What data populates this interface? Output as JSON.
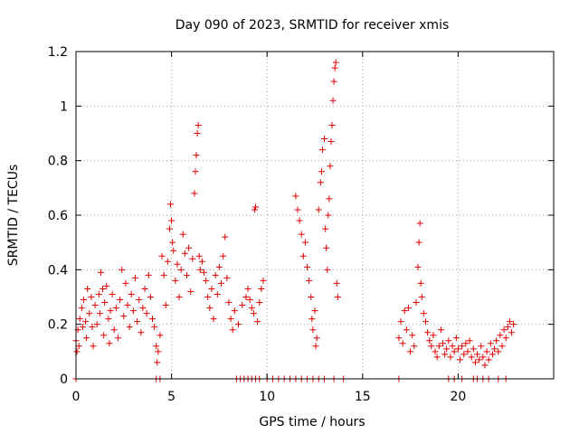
{
  "chart_data": {
    "type": "scatter",
    "title": "Day 090 of 2023, SRMTID for receiver xmis",
    "xlabel": "GPS time / hours",
    "ylabel": "SRMTID / TECUs",
    "xlim": [
      0,
      25
    ],
    "ylim": [
      0,
      1.2
    ],
    "grid": true,
    "marker": "+",
    "marker_color": "#e00000",
    "x_ticks": [
      {
        "value": 0,
        "label": "0"
      },
      {
        "value": 5,
        "label": "5"
      },
      {
        "value": 10,
        "label": "10"
      },
      {
        "value": 15,
        "label": "15"
      },
      {
        "value": 20,
        "label": "20"
      }
    ],
    "y_ticks": [
      {
        "value": 0,
        "label": "0"
      },
      {
        "value": 0.2,
        "label": "0.2"
      },
      {
        "value": 0.4,
        "label": "0.4"
      },
      {
        "value": 0.6,
        "label": "0.6"
      },
      {
        "value": 0.8,
        "label": "0.8"
      },
      {
        "value": 1.0,
        "label": "1"
      },
      {
        "value": 1.2,
        "label": "1.2"
      }
    ],
    "series": [
      {
        "name": "SRMTID",
        "points": [
          [
            0.0,
            0.14
          ],
          [
            0.05,
            0.1
          ],
          [
            0.1,
            0.18
          ],
          [
            0.15,
            0.12
          ],
          [
            0.2,
            0.22
          ],
          [
            0.3,
            0.26
          ],
          [
            0.35,
            0.19
          ],
          [
            0.4,
            0.29
          ],
          [
            0.5,
            0.21
          ],
          [
            0.55,
            0.15
          ],
          [
            0.6,
            0.33
          ],
          [
            0.7,
            0.24
          ],
          [
            0.8,
            0.3
          ],
          [
            0.85,
            0.19
          ],
          [
            0.9,
            0.12
          ],
          [
            1.0,
            0.27
          ],
          [
            1.1,
            0.2
          ],
          [
            1.2,
            0.31
          ],
          [
            1.25,
            0.24
          ],
          [
            1.3,
            0.39
          ],
          [
            1.4,
            0.33
          ],
          [
            1.45,
            0.16
          ],
          [
            1.5,
            0.28
          ],
          [
            1.6,
            0.34
          ],
          [
            1.7,
            0.22
          ],
          [
            1.75,
            0.13
          ],
          [
            1.8,
            0.25
          ],
          [
            1.9,
            0.31
          ],
          [
            2.0,
            0.18
          ],
          [
            2.1,
            0.26
          ],
          [
            2.2,
            0.15
          ],
          [
            2.3,
            0.29
          ],
          [
            2.4,
            0.4
          ],
          [
            2.5,
            0.23
          ],
          [
            2.6,
            0.35
          ],
          [
            2.7,
            0.27
          ],
          [
            2.8,
            0.19
          ],
          [
            2.9,
            0.31
          ],
          [
            3.0,
            0.25
          ],
          [
            3.1,
            0.37
          ],
          [
            3.2,
            0.21
          ],
          [
            3.3,
            0.29
          ],
          [
            3.4,
            0.17
          ],
          [
            3.5,
            0.26
          ],
          [
            3.6,
            0.33
          ],
          [
            3.7,
            0.24
          ],
          [
            3.8,
            0.38
          ],
          [
            3.9,
            0.3
          ],
          [
            4.0,
            0.22
          ],
          [
            4.1,
            0.19
          ],
          [
            4.2,
            0.12
          ],
          [
            4.25,
            0.06
          ],
          [
            4.3,
            0.1
          ],
          [
            4.4,
            0.16
          ],
          [
            4.5,
            0.45
          ],
          [
            4.6,
            0.38
          ],
          [
            4.7,
            0.27
          ],
          [
            4.8,
            0.43
          ],
          [
            4.9,
            0.55
          ],
          [
            4.95,
            0.64
          ],
          [
            5.0,
            0.58
          ],
          [
            5.05,
            0.5
          ],
          [
            5.1,
            0.47
          ],
          [
            5.2,
            0.36
          ],
          [
            5.3,
            0.42
          ],
          [
            5.4,
            0.3
          ],
          [
            5.5,
            0.4
          ],
          [
            5.6,
            0.53
          ],
          [
            5.7,
            0.46
          ],
          [
            5.8,
            0.38
          ],
          [
            5.9,
            0.48
          ],
          [
            6.0,
            0.32
          ],
          [
            6.1,
            0.44
          ],
          [
            6.2,
            0.68
          ],
          [
            6.25,
            0.76
          ],
          [
            6.3,
            0.82
          ],
          [
            6.35,
            0.9
          ],
          [
            6.4,
            0.93
          ],
          [
            6.45,
            0.45
          ],
          [
            6.5,
            0.4
          ],
          [
            6.6,
            0.43
          ],
          [
            6.7,
            0.39
          ],
          [
            6.8,
            0.36
          ],
          [
            6.9,
            0.3
          ],
          [
            7.0,
            0.26
          ],
          [
            7.1,
            0.33
          ],
          [
            7.2,
            0.22
          ],
          [
            7.3,
            0.38
          ],
          [
            7.4,
            0.31
          ],
          [
            7.5,
            0.41
          ],
          [
            7.6,
            0.35
          ],
          [
            7.7,
            0.45
          ],
          [
            7.8,
            0.52
          ],
          [
            7.9,
            0.37
          ],
          [
            8.0,
            0.28
          ],
          [
            8.1,
            0.22
          ],
          [
            8.2,
            0.18
          ],
          [
            8.3,
            0.25
          ],
          [
            8.5,
            0.2
          ],
          [
            8.7,
            0.27
          ],
          [
            8.9,
            0.3
          ],
          [
            9.0,
            0.33
          ],
          [
            9.1,
            0.29
          ],
          [
            9.2,
            0.26
          ],
          [
            9.3,
            0.24
          ],
          [
            9.35,
            0.62
          ],
          [
            9.4,
            0.63
          ],
          [
            9.5,
            0.21
          ],
          [
            9.6,
            0.28
          ],
          [
            9.7,
            0.33
          ],
          [
            9.8,
            0.36
          ],
          [
            11.5,
            0.67
          ],
          [
            11.6,
            0.62
          ],
          [
            11.7,
            0.58
          ],
          [
            11.8,
            0.53
          ],
          [
            11.9,
            0.45
          ],
          [
            12.0,
            0.5
          ],
          [
            12.1,
            0.41
          ],
          [
            12.2,
            0.36
          ],
          [
            12.3,
            0.3
          ],
          [
            12.35,
            0.22
          ],
          [
            12.4,
            0.18
          ],
          [
            12.5,
            0.25
          ],
          [
            12.55,
            0.12
          ],
          [
            12.6,
            0.15
          ],
          [
            12.7,
            0.62
          ],
          [
            12.8,
            0.72
          ],
          [
            12.85,
            0.76
          ],
          [
            12.9,
            0.84
          ],
          [
            13.0,
            0.88
          ],
          [
            13.05,
            0.55
          ],
          [
            13.1,
            0.48
          ],
          [
            13.15,
            0.4
          ],
          [
            13.2,
            0.6
          ],
          [
            13.25,
            0.66
          ],
          [
            13.3,
            0.78
          ],
          [
            13.35,
            0.87
          ],
          [
            13.4,
            0.93
          ],
          [
            13.45,
            1.02
          ],
          [
            13.5,
            1.09
          ],
          [
            13.55,
            1.14
          ],
          [
            13.6,
            1.16
          ],
          [
            13.65,
            0.35
          ],
          [
            13.7,
            0.3
          ],
          [
            16.9,
            0.15
          ],
          [
            17.0,
            0.21
          ],
          [
            17.1,
            0.13
          ],
          [
            17.2,
            0.25
          ],
          [
            17.3,
            0.18
          ],
          [
            17.4,
            0.26
          ],
          [
            17.5,
            0.1
          ],
          [
            17.6,
            0.16
          ],
          [
            17.7,
            0.12
          ],
          [
            17.8,
            0.28
          ],
          [
            17.9,
            0.41
          ],
          [
            17.95,
            0.5
          ],
          [
            18.0,
            0.57
          ],
          [
            18.05,
            0.35
          ],
          [
            18.1,
            0.3
          ],
          [
            18.2,
            0.24
          ],
          [
            18.3,
            0.21
          ],
          [
            18.4,
            0.17
          ],
          [
            18.5,
            0.14
          ],
          [
            18.6,
            0.12
          ],
          [
            18.7,
            0.16
          ],
          [
            18.8,
            0.1
          ],
          [
            18.9,
            0.08
          ],
          [
            19.0,
            0.12
          ],
          [
            19.1,
            0.18
          ],
          [
            19.2,
            0.13
          ],
          [
            19.3,
            0.09
          ],
          [
            19.4,
            0.11
          ],
          [
            19.5,
            0.14
          ],
          [
            19.6,
            0.08
          ],
          [
            19.7,
            0.12
          ],
          [
            19.8,
            0.1
          ],
          [
            19.9,
            0.15
          ],
          [
            20.0,
            0.11
          ],
          [
            20.1,
            0.07
          ],
          [
            20.2,
            0.12
          ],
          [
            20.3,
            0.09
          ],
          [
            20.4,
            0.13
          ],
          [
            20.5,
            0.1
          ],
          [
            20.6,
            0.14
          ],
          [
            20.7,
            0.08
          ],
          [
            20.8,
            0.11
          ],
          [
            20.9,
            0.06
          ],
          [
            21.0,
            0.09
          ],
          [
            21.1,
            0.07
          ],
          [
            21.2,
            0.12
          ],
          [
            21.3,
            0.08
          ],
          [
            21.4,
            0.05
          ],
          [
            21.5,
            0.1
          ],
          [
            21.6,
            0.07
          ],
          [
            21.7,
            0.13
          ],
          [
            21.8,
            0.09
          ],
          [
            21.9,
            0.11
          ],
          [
            22.0,
            0.14
          ],
          [
            22.1,
            0.1
          ],
          [
            22.2,
            0.16
          ],
          [
            22.3,
            0.12
          ],
          [
            22.4,
            0.18
          ],
          [
            22.5,
            0.15
          ],
          [
            22.6,
            0.19
          ],
          [
            22.7,
            0.21
          ],
          [
            22.8,
            0.17
          ],
          [
            22.9,
            0.2
          ],
          [
            0.0,
            0.0
          ],
          [
            4.2,
            0.0
          ],
          [
            4.4,
            0.0
          ],
          [
            8.4,
            0.0
          ],
          [
            8.6,
            0.0
          ],
          [
            8.8,
            0.0
          ],
          [
            9.0,
            0.0
          ],
          [
            9.2,
            0.0
          ],
          [
            9.4,
            0.0
          ],
          [
            9.6,
            0.0
          ],
          [
            10.0,
            0.0
          ],
          [
            10.3,
            0.0
          ],
          [
            10.6,
            0.0
          ],
          [
            10.9,
            0.0
          ],
          [
            11.2,
            0.0
          ],
          [
            11.5,
            0.0
          ],
          [
            11.8,
            0.0
          ],
          [
            12.1,
            0.0
          ],
          [
            12.4,
            0.0
          ],
          [
            12.7,
            0.0
          ],
          [
            13.0,
            0.0
          ],
          [
            13.5,
            0.0
          ],
          [
            14.0,
            0.0
          ],
          [
            16.9,
            0.0
          ],
          [
            19.5,
            0.0
          ],
          [
            19.8,
            0.0
          ],
          [
            20.2,
            0.0
          ],
          [
            20.8,
            0.0
          ],
          [
            21.0,
            0.0
          ],
          [
            21.3,
            0.0
          ],
          [
            21.6,
            0.0
          ],
          [
            22.1,
            0.0
          ],
          [
            22.5,
            0.0
          ]
        ]
      }
    ]
  }
}
